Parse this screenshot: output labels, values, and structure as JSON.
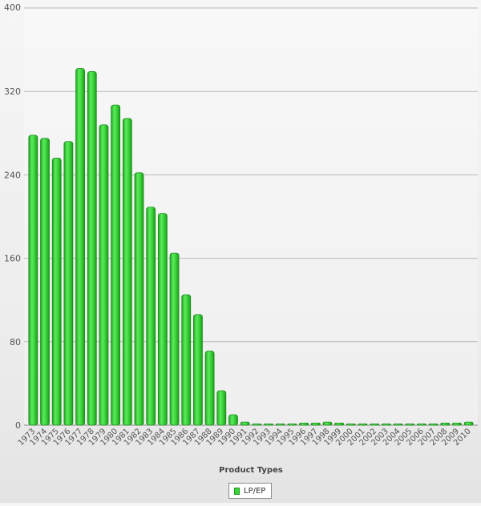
{
  "chart_data": {
    "type": "bar",
    "title": "",
    "xlabel": "Product Types",
    "ylabel": "",
    "ylim": [
      0,
      400
    ],
    "yticks": [
      0,
      80,
      160,
      240,
      320,
      400
    ],
    "grid": true,
    "legend_position": "bottom",
    "categories": [
      "1973",
      "1974",
      "1975",
      "1976",
      "1977",
      "1978",
      "1979",
      "1980",
      "1981",
      "1982",
      "1983",
      "1984",
      "1985",
      "1986",
      "1987",
      "1988",
      "1989",
      "1990",
      "1991",
      "1992",
      "1993",
      "1994",
      "1995",
      "1996",
      "1997",
      "1998",
      "1999",
      "2000",
      "2001",
      "2002",
      "2003",
      "2004",
      "2005",
      "2006",
      "2007",
      "2008",
      "2009",
      "2010"
    ],
    "series": [
      {
        "name": "LP/EP",
        "color": "#3ad33a",
        "values": [
          278,
          275,
          256,
          272,
          342,
          339,
          288,
          307,
          294,
          242,
          209,
          203,
          165,
          125,
          106,
          71,
          33,
          10,
          3,
          1,
          1,
          1,
          1,
          2,
          2,
          3,
          2,
          1,
          1,
          1,
          1,
          1,
          1,
          1,
          1,
          2,
          2,
          3
        ]
      }
    ]
  }
}
